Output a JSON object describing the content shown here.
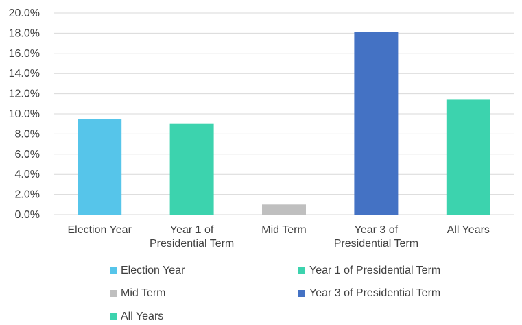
{
  "chart_data": {
    "type": "bar",
    "categories": [
      "Election Year",
      "Year 1 of Presidential Term",
      "Mid Term",
      "Year 3 of Presidential Term",
      "All Years"
    ],
    "category_lines": [
      [
        "Election Year"
      ],
      [
        "Year 1 of",
        "Presidential Term"
      ],
      [
        "Mid Term"
      ],
      [
        "Year 3 of",
        "Presidential Term"
      ],
      [
        "All Years"
      ]
    ],
    "series": [
      {
        "name": "Election Year",
        "values": [
          9.5,
          null,
          null,
          null,
          null
        ],
        "color": "#56C5EA"
      },
      {
        "name": "Year 1 of Presidential Term",
        "values": [
          null,
          9.0,
          null,
          null,
          null
        ],
        "color": "#3CD3AE"
      },
      {
        "name": "Mid Term",
        "values": [
          null,
          null,
          1.0,
          null,
          null
        ],
        "color": "#BFBFBF"
      },
      {
        "name": "Year 3 of Presidential Term",
        "values": [
          null,
          null,
          null,
          18.1,
          null
        ],
        "color": "#4472C4"
      },
      {
        "name": "All Years",
        "values": [
          null,
          null,
          null,
          null,
          11.4
        ],
        "color": "#3CD3AE"
      }
    ],
    "values": [
      9.5,
      9.0,
      1.0,
      18.1,
      11.4
    ],
    "colors": [
      "#56C5EA",
      "#3CD3AE",
      "#BFBFBF",
      "#4472C4",
      "#3CD3AE"
    ],
    "ylim": [
      0,
      20
    ],
    "yticks": [
      "0.0%",
      "2.0%",
      "4.0%",
      "6.0%",
      "8.0%",
      "10.0%",
      "12.0%",
      "14.0%",
      "16.0%",
      "18.0%",
      "20.0%"
    ],
    "ytick_values": [
      0,
      2,
      4,
      6,
      8,
      10,
      12,
      14,
      16,
      18,
      20
    ],
    "grid": true,
    "legend_position": "bottom",
    "legend": [
      {
        "label": "Election Year",
        "color": "#56C5EA"
      },
      {
        "label": "Year 1 of Presidential Term",
        "color": "#3CD3AE"
      },
      {
        "label": "Mid Term",
        "color": "#BFBFBF"
      },
      {
        "label": "Year 3 of Presidential Term",
        "color": "#4472C4"
      },
      {
        "label": "All Years",
        "color": "#3CD3AE"
      }
    ]
  }
}
